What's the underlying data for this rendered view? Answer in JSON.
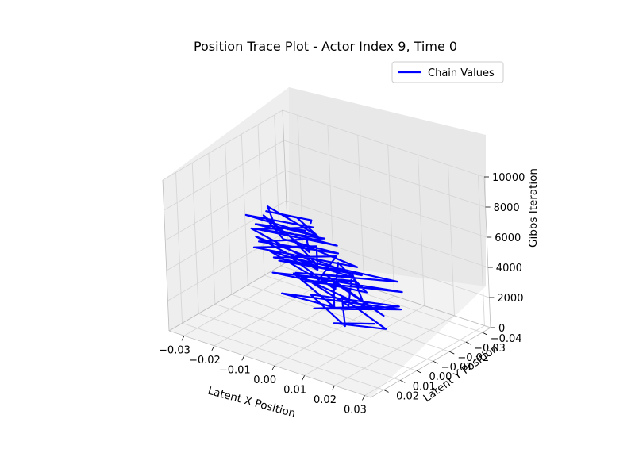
{
  "chart_data": {
    "type": "line",
    "projection": "3d",
    "title": "Position Trace Plot - Actor Index 9, Time 0",
    "xlabel": "Latent X Position",
    "ylabel": "Latent Y Position",
    "zlabel": "Gibbs Iteration",
    "xlim": [
      -0.035,
      0.032
    ],
    "ylim": [
      -0.045,
      0.028
    ],
    "zlim": [
      0,
      10000
    ],
    "xticks": [
      "−0.03",
      "−0.02",
      "−0.01",
      "0.00",
      "0.01",
      "0.02",
      "0.03"
    ],
    "yticks": [
      "−0.04",
      "−0.03",
      "−0.02",
      "−0.01",
      "0.00",
      "0.01",
      "0.02"
    ],
    "zticks": [
      "0",
      "2000",
      "4000",
      "6000",
      "8000",
      "10000"
    ],
    "grid": true,
    "legend_position": "top-right",
    "series": [
      {
        "name": "Chain Values",
        "color": "#0000ff",
        "points": [
          [
            0.006,
            -0.022,
            0
          ],
          [
            -0.002,
            -0.012,
            150
          ],
          [
            0.012,
            -0.018,
            300
          ],
          [
            -0.008,
            -0.028,
            450
          ],
          [
            0.004,
            -0.008,
            600
          ],
          [
            -0.014,
            -0.02,
            750
          ],
          [
            0.01,
            -0.03,
            900
          ],
          [
            0.0,
            -0.014,
            1050
          ],
          [
            -0.018,
            -0.01,
            1200
          ],
          [
            0.014,
            -0.024,
            1350
          ],
          [
            -0.004,
            -0.004,
            1500
          ],
          [
            0.008,
            -0.016,
            1650
          ],
          [
            -0.012,
            -0.026,
            1800
          ],
          [
            0.016,
            -0.01,
            1950
          ],
          [
            -0.006,
            -0.02,
            2100
          ],
          [
            0.004,
            -0.002,
            2250
          ],
          [
            -0.016,
            -0.014,
            2400
          ],
          [
            0.012,
            -0.006,
            2550
          ],
          [
            -0.002,
            -0.024,
            2700
          ],
          [
            0.01,
            0.0,
            2850
          ],
          [
            -0.01,
            -0.008,
            3000
          ],
          [
            0.018,
            -0.018,
            3150
          ],
          [
            -0.006,
            -0.002,
            3300
          ],
          [
            0.006,
            -0.012,
            3450
          ],
          [
            -0.014,
            0.002,
            3600
          ],
          [
            0.014,
            -0.004,
            3750
          ],
          [
            -0.002,
            -0.016,
            3900
          ],
          [
            0.008,
            0.004,
            4050
          ],
          [
            -0.012,
            -0.006,
            4200
          ],
          [
            0.02,
            -0.012,
            4350
          ],
          [
            -0.004,
            0.006,
            4500
          ],
          [
            0.01,
            -0.002,
            4650
          ],
          [
            -0.016,
            0.0,
            4800
          ],
          [
            0.006,
            0.01,
            4950
          ],
          [
            0.002,
            -0.008,
            5100
          ],
          [
            -0.01,
            0.008,
            5250
          ],
          [
            0.016,
            0.002,
            5400
          ],
          [
            -0.006,
            0.012,
            5550
          ],
          [
            0.012,
            0.006,
            5700
          ],
          [
            -0.018,
            0.004,
            5850
          ],
          [
            0.008,
            0.014,
            6000
          ],
          [
            0.0,
            0.0,
            6150
          ],
          [
            -0.012,
            0.016,
            6300
          ],
          [
            0.018,
            0.008,
            6450
          ],
          [
            -0.004,
            0.006,
            6600
          ],
          [
            0.01,
            0.018,
            6750
          ],
          [
            -0.016,
            0.01,
            6900
          ],
          [
            0.004,
            0.002,
            7050
          ],
          [
            -0.008,
            0.02,
            7200
          ],
          [
            0.014,
            0.012,
            7350
          ],
          [
            -0.002,
            0.016,
            7500
          ],
          [
            -0.014,
            0.006,
            7650
          ],
          [
            0.01,
            0.022,
            7800
          ],
          [
            0.002,
            0.01,
            7950
          ],
          [
            -0.01,
            0.018,
            8100
          ],
          [
            0.016,
            0.016,
            8250
          ],
          [
            -0.006,
            0.024,
            8400
          ],
          [
            0.006,
            0.012,
            8550
          ],
          [
            -0.012,
            0.02,
            8700
          ],
          [
            0.012,
            0.02,
            8850
          ],
          [
            0.0,
            0.024,
            9000
          ],
          [
            -0.008,
            0.014,
            9150
          ],
          [
            0.014,
            0.024,
            9300
          ],
          [
            0.004,
            0.018,
            9450
          ],
          [
            -0.004,
            0.022,
            9600
          ],
          [
            0.01,
            0.02,
            9800
          ],
          [
            0.012,
            0.024,
            10000
          ]
        ]
      }
    ]
  }
}
